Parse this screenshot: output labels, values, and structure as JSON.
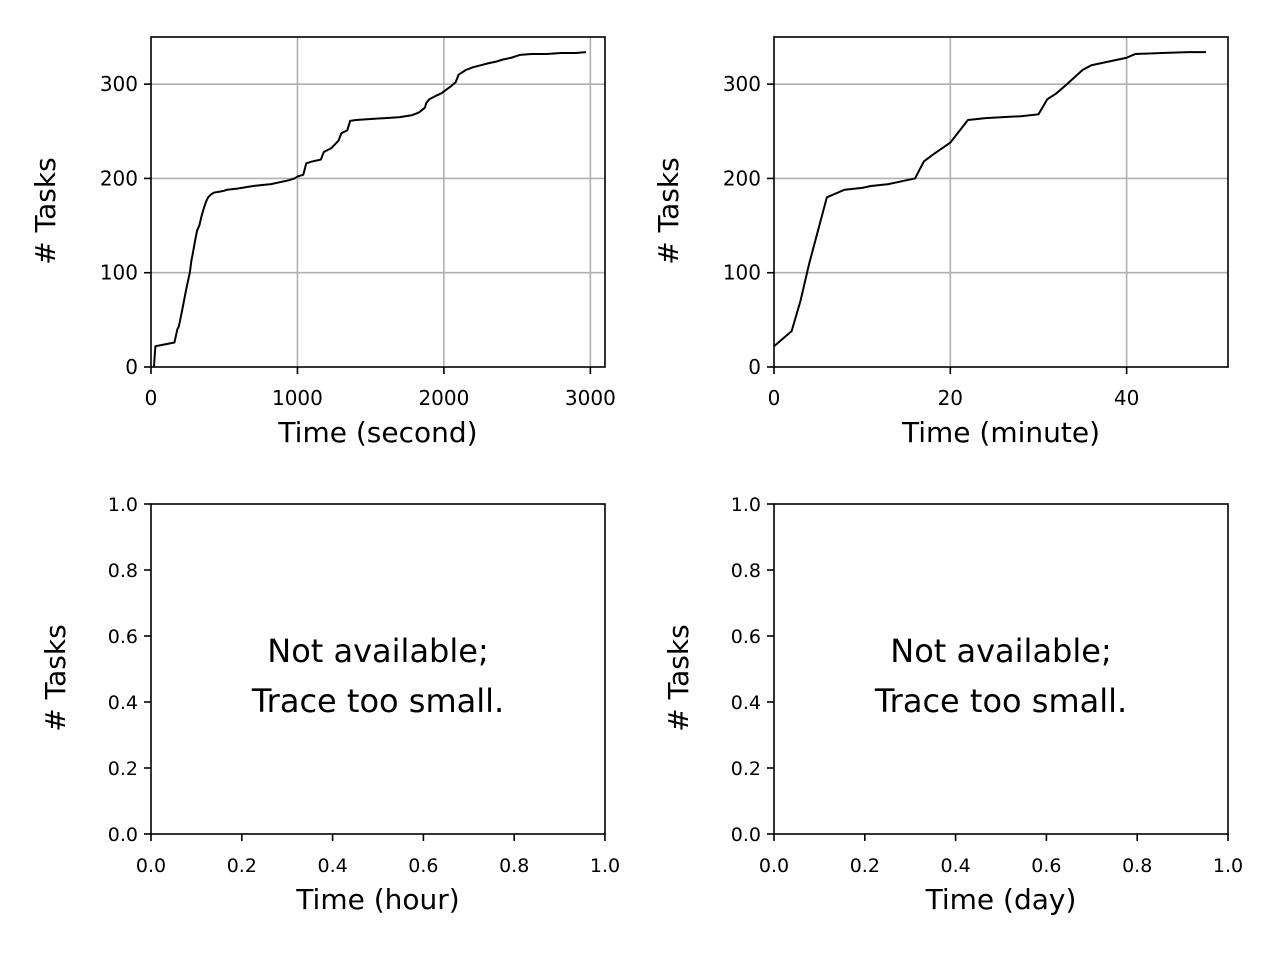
{
  "chart_data": [
    {
      "type": "line",
      "xlabel": "Time (second)",
      "ylabel": "# Tasks",
      "xlim": [
        0,
        3100
      ],
      "ylim": [
        0,
        350
      ],
      "xticks": [
        "0",
        "1000",
        "2000",
        "3000"
      ],
      "yticks": [
        "0",
        "100",
        "200",
        "300"
      ],
      "grid": true,
      "line_color": "#000000",
      "series": [
        {
          "x": [
            20,
            30,
            160,
            180,
            190,
            210,
            225,
            240,
            255,
            265,
            275,
            285,
            300,
            315,
            330,
            345,
            360,
            375,
            390,
            410,
            430,
            470,
            500,
            520,
            580,
            620,
            660,
            700,
            760,
            820,
            880,
            940,
            980,
            1000,
            1040,
            1060,
            1100,
            1160,
            1180,
            1230,
            1280,
            1300,
            1340,
            1360,
            1400,
            1500,
            1600,
            1700,
            1780,
            1830,
            1870,
            1880,
            1900,
            1950,
            1980,
            2050,
            2080,
            2100,
            2150,
            2200,
            2250,
            2300,
            2360,
            2400,
            2460,
            2500,
            2520,
            2600,
            2700,
            2800,
            2900,
            2970
          ],
          "y": [
            0,
            22,
            26,
            40,
            43,
            58,
            70,
            82,
            93,
            100,
            112,
            120,
            133,
            145,
            150,
            160,
            168,
            175,
            180,
            183,
            185,
            186,
            187,
            188,
            189,
            190,
            191,
            192,
            193,
            194,
            196,
            198,
            200,
            202,
            204,
            216,
            218,
            220,
            228,
            232,
            240,
            248,
            251,
            261,
            262,
            263,
            264,
            265,
            267,
            270,
            275,
            280,
            284,
            288,
            290,
            298,
            302,
            310,
            315,
            318,
            320,
            322,
            324,
            326,
            328,
            330,
            331,
            332,
            332,
            333,
            333,
            334
          ]
        }
      ]
    },
    {
      "type": "line",
      "xlabel": "Time (minute)",
      "ylabel": "# Tasks",
      "xlim": [
        0,
        51.5
      ],
      "ylim": [
        0,
        350
      ],
      "xticks": [
        "0",
        "20",
        "40"
      ],
      "yticks": [
        "0",
        "100",
        "200",
        "300"
      ],
      "grid": true,
      "line_color": "#000000",
      "series": [
        {
          "x": [
            0,
            2,
            3,
            4,
            5,
            6,
            8,
            10,
            11,
            13,
            14,
            15,
            16,
            17,
            18,
            20,
            21,
            22,
            24,
            26,
            28,
            30,
            31,
            32,
            33,
            35,
            36,
            38,
            40,
            41,
            44,
            47,
            49
          ],
          "y": [
            22,
            38,
            70,
            110,
            145,
            180,
            188,
            190,
            192,
            194,
            196,
            198,
            200,
            218,
            225,
            238,
            250,
            262,
            264,
            265,
            266,
            268,
            284,
            290,
            298,
            315,
            320,
            324,
            328,
            332,
            333,
            334,
            334
          ]
        }
      ]
    },
    {
      "type": "line",
      "xlabel": "Time (hour)",
      "ylabel": "# Tasks",
      "xlim": [
        0,
        1
      ],
      "ylim": [
        0,
        1
      ],
      "xticks": [
        "0.0",
        "0.2",
        "0.4",
        "0.6",
        "0.8",
        "1.0"
      ],
      "yticks": [
        "0.0",
        "0.2",
        "0.4",
        "0.6",
        "0.8",
        "1.0"
      ],
      "grid": false,
      "annotation": [
        "Not available;",
        "Trace too small."
      ],
      "series": []
    },
    {
      "type": "line",
      "xlabel": "Time (day)",
      "ylabel": "# Tasks",
      "xlim": [
        0,
        1
      ],
      "ylim": [
        0,
        1
      ],
      "xticks": [
        "0.0",
        "0.2",
        "0.4",
        "0.6",
        "0.8",
        "1.0"
      ],
      "yticks": [
        "0.0",
        "0.2",
        "0.4",
        "0.6",
        "0.8",
        "1.0"
      ],
      "grid": false,
      "annotation": [
        "Not available;",
        "Trace too small."
      ],
      "series": []
    }
  ]
}
